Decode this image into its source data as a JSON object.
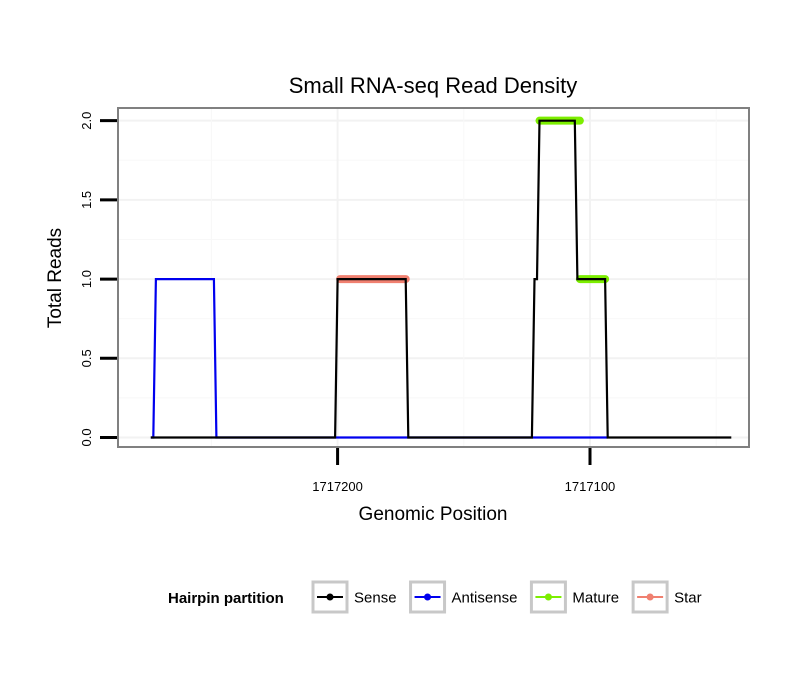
{
  "chart_data": {
    "type": "line",
    "title": "Small RNA-seq Read Density",
    "xlabel": "Genomic Position",
    "ylabel": "Total Reads",
    "x_reversed": true,
    "xlim": [
      1717287,
      1717037
    ],
    "ylim": [
      -0.06,
      2.08
    ],
    "x_ticks": [
      1717200,
      1717100
    ],
    "x_tick_labels": [
      "1717200",
      "1717100"
    ],
    "y_ticks": [
      0,
      0.5,
      1,
      1.5,
      2
    ],
    "y_tick_labels": [
      "0.0",
      "0.5",
      "1.0",
      "1.5",
      "2.0"
    ],
    "grid": true,
    "legend_title": "Hairpin partition",
    "legend_position": "bottom",
    "series": [
      {
        "name": "Sense",
        "color": "#000000",
        "style": "line",
        "x": [
          1717274,
          1717201,
          1717200,
          1717199,
          1717173,
          1717172,
          1717123,
          1717122,
          1717121,
          1717120,
          1717106,
          1717105,
          1717104,
          1717095,
          1717094,
          1717093,
          1717044
        ],
        "y": [
          0,
          0,
          1,
          1,
          1,
          0,
          0,
          1,
          1,
          2,
          2,
          1,
          1,
          1,
          1,
          0,
          0
        ]
      },
      {
        "name": "Antisense",
        "color": "#0000ee",
        "style": "line",
        "x": [
          1717274,
          1717273,
          1717272,
          1717249,
          1717248,
          1717201,
          1717172,
          1717123,
          1717093
        ],
        "y": [
          0,
          0,
          1,
          1,
          0,
          0,
          0,
          0,
          0
        ]
      },
      {
        "name": "Mature",
        "color": "#7cee00",
        "style": "segment",
        "x": [
          1717120,
          1717104,
          1717104,
          1717094
        ],
        "y": [
          2,
          2,
          1,
          1
        ]
      },
      {
        "name": "Star",
        "color": "#f08070",
        "style": "segment",
        "x": [
          1717199,
          1717173
        ],
        "y": [
          1,
          1
        ]
      }
    ]
  }
}
